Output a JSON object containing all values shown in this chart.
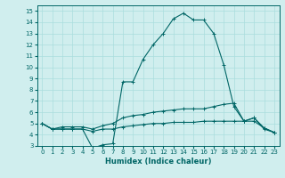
{
  "xlabel": "Humidex (Indice chaleur)",
  "bg_color": "#d0eeee",
  "grid_color": "#aadddd",
  "line_color": "#006666",
  "xlim": [
    -0.5,
    23.5
  ],
  "ylim": [
    3.0,
    15.5
  ],
  "yticks": [
    3,
    4,
    5,
    6,
    7,
    8,
    9,
    10,
    11,
    12,
    13,
    14,
    15
  ],
  "xticks": [
    0,
    1,
    2,
    3,
    4,
    5,
    6,
    7,
    8,
    9,
    10,
    11,
    12,
    13,
    14,
    15,
    16,
    17,
    18,
    19,
    20,
    21,
    22,
    23
  ],
  "line1_x": [
    0,
    1,
    2,
    3,
    4,
    5,
    6,
    7,
    8,
    9,
    10,
    11,
    12,
    13,
    14,
    15,
    16,
    17,
    18,
    19,
    20,
    21,
    22,
    23
  ],
  "line1_y": [
    5.0,
    4.5,
    4.5,
    4.5,
    4.5,
    2.8,
    3.1,
    3.2,
    8.7,
    8.7,
    10.7,
    12.0,
    13.0,
    14.3,
    14.8,
    14.2,
    14.2,
    13.0,
    10.2,
    6.5,
    5.2,
    5.5,
    4.5,
    4.2
  ],
  "line2_x": [
    0,
    1,
    2,
    3,
    4,
    5,
    6,
    7,
    8,
    9,
    10,
    11,
    12,
    13,
    14,
    15,
    16,
    17,
    18,
    19,
    20,
    21,
    22,
    23
  ],
  "line2_y": [
    5.0,
    4.5,
    4.7,
    4.7,
    4.7,
    4.5,
    4.8,
    5.0,
    5.5,
    5.7,
    5.8,
    6.0,
    6.1,
    6.2,
    6.3,
    6.3,
    6.3,
    6.5,
    6.7,
    6.8,
    5.2,
    5.5,
    4.6,
    4.2
  ],
  "line3_x": [
    0,
    1,
    2,
    3,
    4,
    5,
    6,
    7,
    8,
    9,
    10,
    11,
    12,
    13,
    14,
    15,
    16,
    17,
    18,
    19,
    20,
    21,
    22,
    23
  ],
  "line3_y": [
    5.0,
    4.5,
    4.5,
    4.5,
    4.5,
    4.3,
    4.5,
    4.5,
    4.7,
    4.8,
    4.9,
    5.0,
    5.0,
    5.1,
    5.1,
    5.1,
    5.2,
    5.2,
    5.2,
    5.2,
    5.2,
    5.2,
    4.6,
    4.2
  ],
  "tick_fontsize": 5.0,
  "xlabel_fontsize": 6.0
}
